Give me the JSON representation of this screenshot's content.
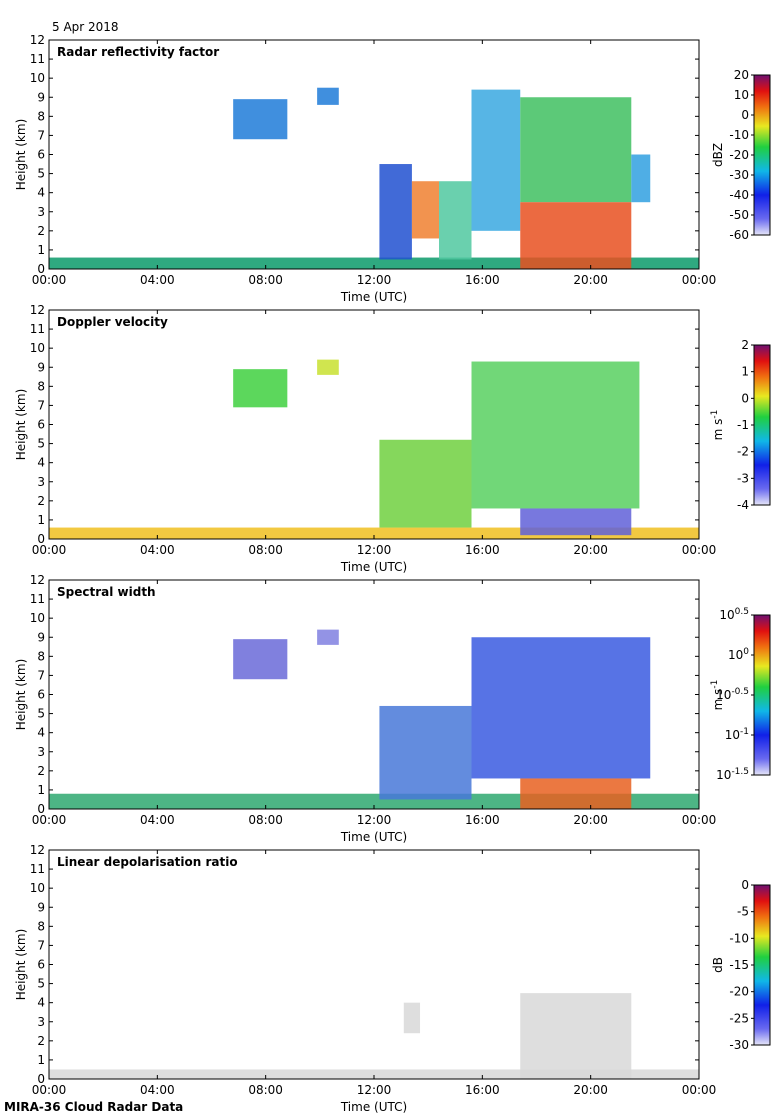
{
  "header": {
    "date": "5 Apr 2018"
  },
  "footer": {
    "label": "MIRA-36 Cloud Radar Data"
  },
  "chart_data": [
    {
      "type": "heatmap",
      "title": "Radar reflectivity factor",
      "xlabel": "Time (UTC)",
      "ylabel": "Height (km)",
      "xticks": [
        "00:00",
        "04:00",
        "08:00",
        "12:00",
        "16:00",
        "20:00",
        "00:00"
      ],
      "yticks": [
        0,
        1,
        2,
        3,
        4,
        5,
        6,
        7,
        8,
        9,
        10,
        11,
        12
      ],
      "xlim": [
        0,
        24
      ],
      "ylim": [
        0,
        12
      ],
      "colorbar": {
        "label": "dBZ",
        "ticks": [
          "20",
          "10",
          "0",
          "-10",
          "-20",
          "-30",
          "-40",
          "-50",
          "-60"
        ]
      },
      "features": [
        {
          "x0": 0.0,
          "x1": 24.0,
          "ytop": 0.6,
          "color": "#0a9a6a"
        },
        {
          "x0": 6.8,
          "x1": 8.8,
          "ytop": 8.9,
          "ybot": 6.8,
          "color": "#1e7bd8"
        },
        {
          "x0": 9.9,
          "x1": 10.7,
          "ytop": 9.5,
          "ybot": 8.6,
          "color": "#1e7bd8"
        },
        {
          "x0": 12.2,
          "x1": 13.4,
          "ytop": 5.5,
          "ybot": 0.5,
          "color": "#2050d0"
        },
        {
          "x0": 13.4,
          "x1": 14.4,
          "ytop": 4.6,
          "ybot": 1.6,
          "color": "#f08030"
        },
        {
          "x0": 14.4,
          "x1": 15.6,
          "ytop": 4.6,
          "ybot": 0.5,
          "color": "#50c8a0"
        },
        {
          "x0": 15.6,
          "x1": 17.4,
          "ytop": 9.4,
          "ybot": 2.0,
          "color": "#3aa8e0"
        },
        {
          "x0": 17.4,
          "x1": 21.5,
          "ytop": 9.0,
          "ybot": 3.5,
          "color": "#40c060"
        },
        {
          "x0": 17.4,
          "x1": 21.5,
          "ytop": 3.5,
          "ybot": 0.0,
          "color": "#e85020"
        },
        {
          "x0": 21.5,
          "x1": 22.2,
          "ytop": 6.0,
          "ybot": 3.5,
          "color": "#30a0e0"
        }
      ]
    },
    {
      "type": "heatmap",
      "title": "Doppler velocity",
      "xlabel": "Time (UTC)",
      "ylabel": "Height (km)",
      "xticks": [
        "00:00",
        "04:00",
        "08:00",
        "12:00",
        "16:00",
        "20:00",
        "00:00"
      ],
      "yticks": [
        0,
        1,
        2,
        3,
        4,
        5,
        6,
        7,
        8,
        9,
        10,
        11,
        12
      ],
      "xlim": [
        0,
        24
      ],
      "ylim": [
        0,
        12
      ],
      "colorbar": {
        "label": "m s-1",
        "ticks": [
          "2",
          "1",
          "0",
          "-1",
          "-2",
          "-3",
          "-4"
        ]
      },
      "features": [
        {
          "x0": 0.0,
          "x1": 24.0,
          "ytop": 0.6,
          "color": "#f0c020"
        },
        {
          "x0": 6.8,
          "x1": 8.8,
          "ytop": 8.9,
          "ybot": 6.9,
          "color": "#40d040"
        },
        {
          "x0": 9.9,
          "x1": 10.7,
          "ytop": 9.4,
          "ybot": 8.6,
          "color": "#c8e030"
        },
        {
          "x0": 12.2,
          "x1": 15.6,
          "ytop": 5.2,
          "ybot": 0.6,
          "color": "#70d040"
        },
        {
          "x0": 15.6,
          "x1": 21.8,
          "ytop": 9.3,
          "ybot": 1.6,
          "color": "#58d060"
        },
        {
          "x0": 17.4,
          "x1": 21.5,
          "ytop": 1.6,
          "ybot": 0.2,
          "color": "#6060d8"
        }
      ]
    },
    {
      "type": "heatmap",
      "title": "Spectral width",
      "xlabel": "Time (UTC)",
      "ylabel": "Height (km)",
      "xticks": [
        "00:00",
        "04:00",
        "08:00",
        "12:00",
        "16:00",
        "20:00",
        "00:00"
      ],
      "yticks": [
        0,
        1,
        2,
        3,
        4,
        5,
        6,
        7,
        8,
        9,
        10,
        11,
        12
      ],
      "xlim": [
        0,
        24
      ],
      "ylim": [
        0,
        12
      ],
      "colorbar": {
        "label": "m s-1",
        "ticks": [
          "10^0.5",
          "10^0",
          "10^-0.5",
          "10^-1",
          "10^-1.5"
        ]
      },
      "features": [
        {
          "x0": 0.0,
          "x1": 24.0,
          "ytop": 0.8,
          "color": "#2ea870"
        },
        {
          "x0": 6.8,
          "x1": 8.8,
          "ytop": 8.9,
          "ybot": 6.8,
          "color": "#6a6ad8"
        },
        {
          "x0": 9.9,
          "x1": 10.7,
          "ytop": 9.4,
          "ybot": 8.6,
          "color": "#8080e0"
        },
        {
          "x0": 12.2,
          "x1": 15.6,
          "ytop": 5.4,
          "ybot": 0.5,
          "color": "#4878d8"
        },
        {
          "x0": 15.6,
          "x1": 22.2,
          "ytop": 9.0,
          "ybot": 1.6,
          "color": "#3a5ae0"
        },
        {
          "x0": 17.4,
          "x1": 21.5,
          "ytop": 1.6,
          "ybot": 0.0,
          "color": "#e86020"
        }
      ]
    },
    {
      "type": "heatmap",
      "title": "Linear depolarisation ratio",
      "xlabel": "Time (UTC)",
      "ylabel": "Height (km)",
      "xticks": [
        "00:00",
        "04:00",
        "08:00",
        "12:00",
        "16:00",
        "20:00",
        "00:00"
      ],
      "yticks": [
        0,
        1,
        2,
        3,
        4,
        5,
        6,
        7,
        8,
        9,
        10,
        11,
        12
      ],
      "xlim": [
        0,
        24
      ],
      "ylim": [
        0,
        12
      ],
      "colorbar": {
        "label": "dB",
        "ticks": [
          "0",
          "-5",
          "-10",
          "-15",
          "-20",
          "-25",
          "-30"
        ]
      },
      "features": [
        {
          "x0": 0.0,
          "x1": 24.0,
          "ytop": 0.5,
          "color": "#d8d8d8"
        },
        {
          "x0": 13.1,
          "x1": 13.7,
          "ytop": 4.0,
          "ybot": 2.4,
          "color": "#d8d8d8"
        },
        {
          "x0": 17.4,
          "x1": 21.5,
          "ytop": 4.5,
          "ybot": 0.0,
          "color": "#d8d8d8"
        }
      ]
    }
  ]
}
